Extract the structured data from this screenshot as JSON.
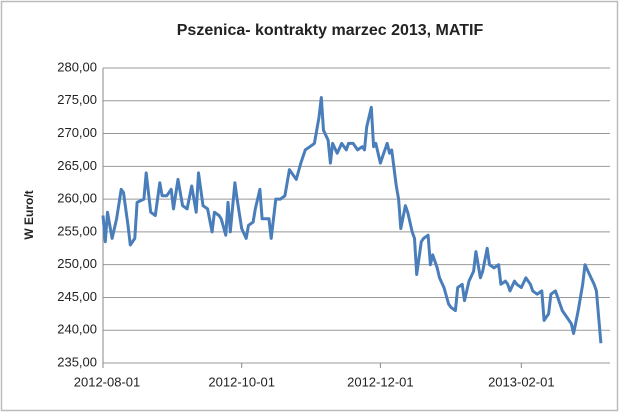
{
  "chart_data": {
    "type": "line",
    "title": "Pszenica- kontrakty marzec 2013, MATIF",
    "y_label": "W Euro/t",
    "x": [
      "2012-08-01",
      "2012-08-02",
      "2012-08-03",
      "2012-08-05",
      "2012-08-07",
      "2012-08-09",
      "2012-08-10",
      "2012-08-12",
      "2012-08-13",
      "2012-08-15",
      "2012-08-16",
      "2012-08-19",
      "2012-08-20",
      "2012-08-22",
      "2012-08-24",
      "2012-08-26",
      "2012-08-27",
      "2012-08-29",
      "2012-08-31",
      "2012-09-01",
      "2012-09-03",
      "2012-09-04",
      "2012-09-05",
      "2012-09-07",
      "2012-09-09",
      "2012-09-11",
      "2012-09-12",
      "2012-09-14",
      "2012-09-16",
      "2012-09-18",
      "2012-09-19",
      "2012-09-21",
      "2012-09-22",
      "2012-09-24",
      "2012-09-25",
      "2012-09-26",
      "2012-09-28",
      "2012-09-29",
      "2012-10-01",
      "2012-10-03",
      "2012-10-04",
      "2012-10-06",
      "2012-10-07",
      "2012-10-09",
      "2012-10-10",
      "2012-10-13",
      "2012-10-14",
      "2012-10-16",
      "2012-10-18",
      "2012-10-20",
      "2012-10-22",
      "2012-10-24",
      "2012-10-25",
      "2012-10-27",
      "2012-10-29",
      "2012-10-31",
      "2012-11-02",
      "2012-11-04",
      "2012-11-05",
      "2012-11-06",
      "2012-11-08",
      "2012-11-09",
      "2012-11-10",
      "2012-11-12",
      "2012-11-14",
      "2012-11-16",
      "2012-11-17",
      "2012-11-19",
      "2012-11-21",
      "2012-11-23",
      "2012-11-24",
      "2012-11-25",
      "2012-11-27",
      "2012-11-28",
      "2012-11-29",
      "2012-12-01",
      "2012-12-02",
      "2012-12-04",
      "2012-12-05",
      "2012-12-06",
      "2012-12-08",
      "2012-12-09",
      "2012-12-10",
      "2012-12-12",
      "2012-12-13",
      "2012-12-15",
      "2012-12-16",
      "2012-12-17",
      "2012-12-19",
      "2012-12-20",
      "2012-12-22",
      "2012-12-23",
      "2012-12-24",
      "2012-12-26",
      "2012-12-27",
      "2012-12-29",
      "2012-12-31",
      "2013-01-01",
      "2013-01-03",
      "2013-01-04",
      "2013-01-06",
      "2013-01-07",
      "2013-01-09",
      "2013-01-11",
      "2013-01-12",
      "2013-01-14",
      "2013-01-15",
      "2013-01-17",
      "2013-01-18",
      "2013-01-20",
      "2013-01-22",
      "2013-01-23",
      "2013-01-25",
      "2013-01-26",
      "2013-01-27",
      "2013-01-29",
      "2013-01-30",
      "2013-02-01",
      "2013-02-03",
      "2013-02-05",
      "2013-02-06",
      "2013-02-08",
      "2013-02-10",
      "2013-02-11",
      "2013-02-13",
      "2013-02-14",
      "2013-02-16",
      "2013-02-17",
      "2013-02-19",
      "2013-02-21",
      "2013-02-23",
      "2013-02-24",
      "2013-02-26",
      "2013-02-28",
      "2013-03-01",
      "2013-03-03",
      "2013-03-05",
      "2013-03-06",
      "2013-03-08"
    ],
    "series": [
      {
        "name": "MATIF",
        "color": "#4a7ebb",
        "values": [
          257.5,
          253.5,
          258,
          254,
          257,
          261.5,
          261,
          256,
          253,
          254,
          259.5,
          260,
          264,
          258,
          257.5,
          262.5,
          260.5,
          260.5,
          261.5,
          258.5,
          263,
          261,
          259,
          258.5,
          262,
          258,
          264,
          259,
          258.5,
          255,
          258,
          257.5,
          257,
          254.5,
          259.5,
          255,
          262.5,
          260,
          255.5,
          254,
          256,
          256.5,
          258.5,
          261.5,
          257,
          257,
          254,
          260,
          260,
          260.5,
          264.5,
          263.5,
          263,
          265.5,
          267.5,
          268,
          268.5,
          272.5,
          275.5,
          270.5,
          269,
          265.5,
          268.5,
          267,
          268.5,
          267.5,
          268.5,
          268.5,
          267.5,
          268,
          267.5,
          271,
          274,
          268,
          268.5,
          265.5,
          266.5,
          268.5,
          267,
          267.5,
          262,
          260,
          255.5,
          259,
          258,
          255,
          254,
          248.5,
          253.5,
          254,
          254.5,
          250,
          251.5,
          249.5,
          248,
          246.5,
          244,
          243.5,
          243,
          246.5,
          247,
          244.5,
          247.5,
          249,
          252,
          248,
          249,
          252.5,
          250,
          249.5,
          250,
          247,
          247.5,
          247,
          246,
          247.5,
          247,
          246.5,
          248,
          247,
          246,
          245.5,
          246,
          241.5,
          242.5,
          245.5,
          246,
          245,
          243,
          242,
          241,
          239.5,
          243,
          247,
          250,
          248.5,
          247,
          246,
          238
        ]
      }
    ],
    "xlim": [
      "2012-08-01",
      "2013-03-12"
    ],
    "xticks": [
      "2012-08-01",
      "2012-10-01",
      "2012-12-01",
      "2013-02-01"
    ],
    "ylim": [
      235,
      280
    ],
    "yticks": [
      {
        "value": 235,
        "label": "235,00"
      },
      {
        "value": 240,
        "label": "240,00"
      },
      {
        "value": 245,
        "label": "245,00"
      },
      {
        "value": 250,
        "label": "250,00"
      },
      {
        "value": 255,
        "label": "255,00"
      },
      {
        "value": 260,
        "label": "260,00"
      },
      {
        "value": 265,
        "label": "265,00"
      },
      {
        "value": 270,
        "label": "270,00"
      },
      {
        "value": 275,
        "label": "275,00"
      },
      {
        "value": 280,
        "label": "280,00"
      }
    ],
    "grid": true
  }
}
